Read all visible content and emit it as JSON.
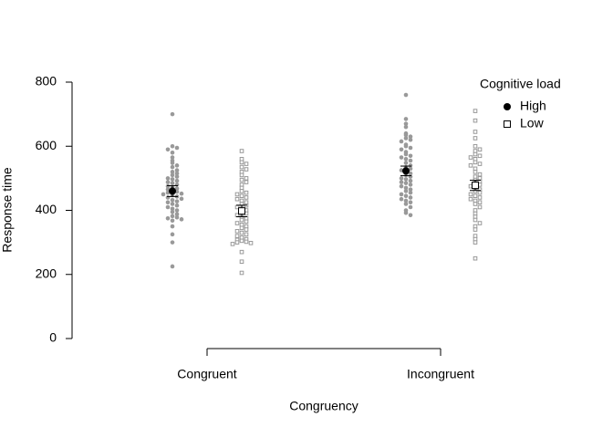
{
  "chart_data": {
    "type": "beeswarm",
    "x_label": "Congruency",
    "y_label": "Response time",
    "categories": [
      "Congruent",
      "Incongruent"
    ],
    "ylim": [
      0,
      800
    ],
    "yticks": [
      0,
      200,
      400,
      600,
      800
    ],
    "legend_title": "Cognitive load",
    "legend_position": "top-right",
    "series": [
      {
        "name": "High",
        "color": "#999999",
        "mean_color": "#000000",
        "marker": "circle",
        "points": [
          [
            700,
            600,
            595,
            590,
            580,
            565,
            555,
            548,
            540,
            535,
            525,
            520,
            515,
            510,
            505,
            500,
            497,
            492,
            488,
            485,
            480,
            475,
            472,
            468,
            465,
            460,
            458,
            455,
            452,
            450,
            447,
            443,
            440,
            436,
            432,
            428,
            425,
            420,
            415,
            410,
            405,
            400,
            395,
            388,
            382,
            378,
            375,
            372,
            368,
            350,
            325,
            300,
            225
          ],
          [
            760,
            685,
            670,
            660,
            640,
            635,
            630,
            625,
            620,
            615,
            605,
            600,
            595,
            590,
            582,
            575,
            570,
            565,
            560,
            555,
            548,
            540,
            535,
            530,
            525,
            520,
            515,
            510,
            505,
            500,
            497,
            492,
            488,
            485,
            480,
            475,
            470,
            465,
            460,
            455,
            450,
            445,
            440,
            435,
            430,
            425,
            420,
            410,
            400,
            392,
            385
          ]
        ],
        "means": [
          460,
          523
        ],
        "errors": [
          17,
          15
        ]
      },
      {
        "name": "Low",
        "color": "#999999",
        "mean_color": "#000000",
        "marker": "square",
        "points": [
          [
            585,
            560,
            550,
            545,
            535,
            528,
            520,
            510,
            500,
            495,
            488,
            480,
            470,
            460,
            455,
            450,
            445,
            440,
            435,
            430,
            425,
            420,
            415,
            410,
            405,
            400,
            395,
            390,
            385,
            380,
            375,
            370,
            365,
            360,
            355,
            350,
            345,
            340,
            335,
            330,
            325,
            320,
            315,
            310,
            308,
            305,
            302,
            300,
            298,
            295,
            270,
            240,
            205
          ],
          [
            710,
            680,
            645,
            625,
            600,
            590,
            585,
            575,
            570,
            565,
            560,
            550,
            545,
            540,
            530,
            520,
            512,
            505,
            500,
            495,
            490,
            485,
            480,
            475,
            470,
            465,
            460,
            455,
            450,
            445,
            440,
            435,
            430,
            425,
            420,
            410,
            400,
            390,
            380,
            370,
            360,
            350,
            340,
            320,
            310,
            300,
            250
          ]
        ],
        "means": [
          398,
          478
        ],
        "errors": [
          18,
          16
        ]
      }
    ]
  }
}
